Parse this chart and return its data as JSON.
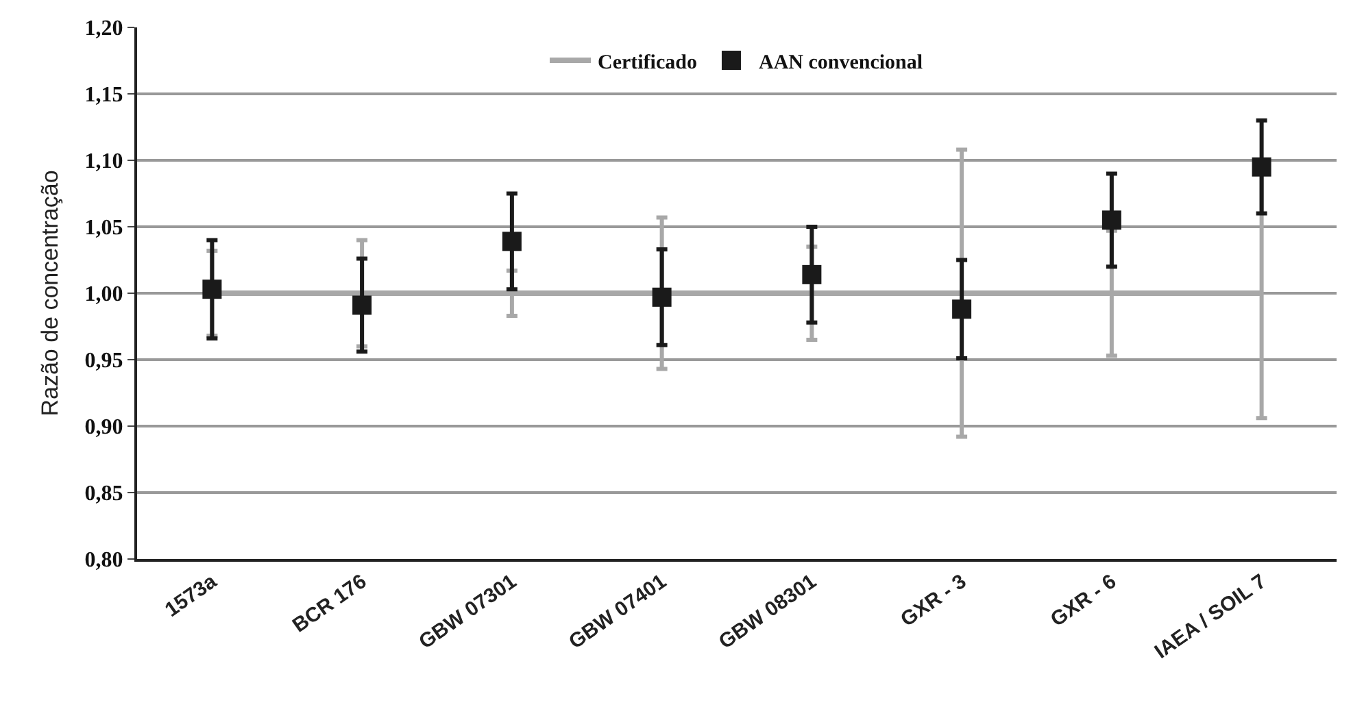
{
  "chart_data": {
    "type": "scatter",
    "ylabel": "Razão de concentração",
    "categories": [
      "1573a",
      "BCR 176",
      "GBW 07301",
      "GBW 07401",
      "GBW 08301",
      "GXR - 3",
      "GXR - 6",
      "IAEA / SOIL 7"
    ],
    "series": [
      {
        "name": "Certificado",
        "type": "line",
        "color": "#a8a8a8",
        "marker": "none",
        "values": [
          1.0,
          1.0,
          1.0,
          1.0,
          1.0,
          1.0,
          1.0,
          1.0
        ],
        "errors": [
          0.032,
          0.04,
          0.017,
          0.057,
          0.035,
          0.108,
          0.047,
          0.094
        ]
      },
      {
        "name": "AAN convencional",
        "color": "#1a1a1a",
        "marker": "square",
        "values": [
          1.003,
          0.991,
          1.039,
          0.997,
          1.014,
          0.988,
          1.055,
          1.095
        ],
        "errors": [
          0.037,
          0.035,
          0.036,
          0.036,
          0.036,
          0.037,
          0.035,
          0.035
        ]
      }
    ],
    "ylim": [
      0.8,
      1.2
    ],
    "yticks": [
      {
        "value": 0.8,
        "label": "0,80"
      },
      {
        "value": 0.85,
        "label": "0,85"
      },
      {
        "value": 0.9,
        "label": "0,90"
      },
      {
        "value": 0.95,
        "label": "0,95"
      },
      {
        "value": 1.0,
        "label": "1,00"
      },
      {
        "value": 1.05,
        "label": "1,05"
      },
      {
        "value": 1.1,
        "label": "1,10"
      },
      {
        "value": 1.15,
        "label": "1,15"
      },
      {
        "value": 1.2,
        "label": "1,20"
      }
    ],
    "grid": "y",
    "legend": "top"
  }
}
